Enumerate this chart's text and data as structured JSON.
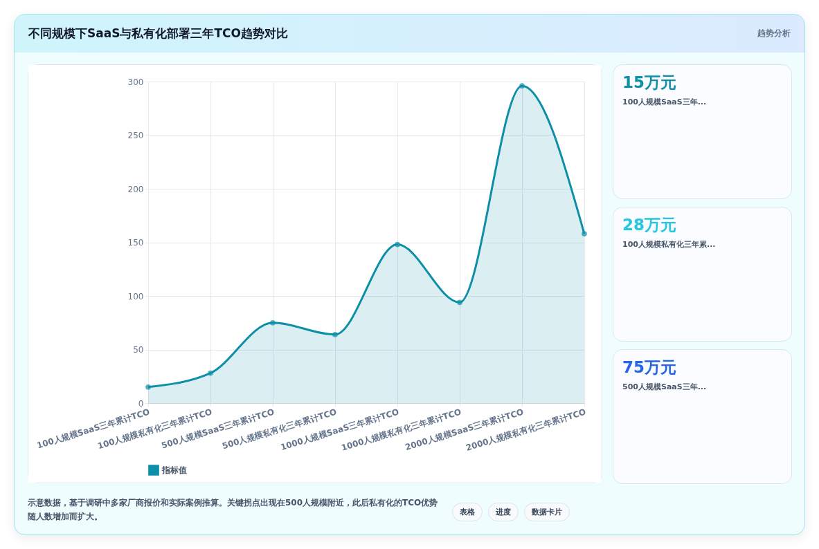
{
  "chart_data": [
    {
      "type": "area",
      "title": "不同规模下SaaS与私有化部署三年TCO趋势对比",
      "categories": [
        "100人规模SaaS三年累计TCO",
        "100人规模私有化三年累计TCO",
        "500人规模SaaS三年累计TCO",
        "500人规模私有化三年累计TCO",
        "1000人规模SaaS三年累计TCO",
        "1000人规模私有化三年累计TCO",
        "2000人规模SaaS三年累计TCO",
        "2000人规模私有化三年累计TCO"
      ],
      "series": [
        {
          "name": "指标值",
          "color": "#0e8fa8",
          "values": [
            15,
            28,
            75,
            64,
            148,
            94,
            296,
            158
          ]
        }
      ],
      "ylim": [
        0,
        300
      ],
      "yticks": [
        0,
        50,
        100,
        150,
        200,
        250,
        300
      ],
      "grid": true,
      "legend": "bottom",
      "marker": "circle",
      "annotations": [
        "示意数据，基于调研中多家厂商报价和实际案例推算。关键拐点出现在500人规模附近，此后私有化的TCO优势随人数增加而扩大。"
      ]
    },
    {
      "type": "other",
      "annotations": [
        "趋势分析",
        "15万元",
        "100人规模SaaS三年...",
        "28万元",
        "100人规模私有化三年累...",
        "75万元",
        "500人规模SaaS三年...",
        "表格",
        "进度",
        "数据卡片"
      ]
    }
  ]
}
